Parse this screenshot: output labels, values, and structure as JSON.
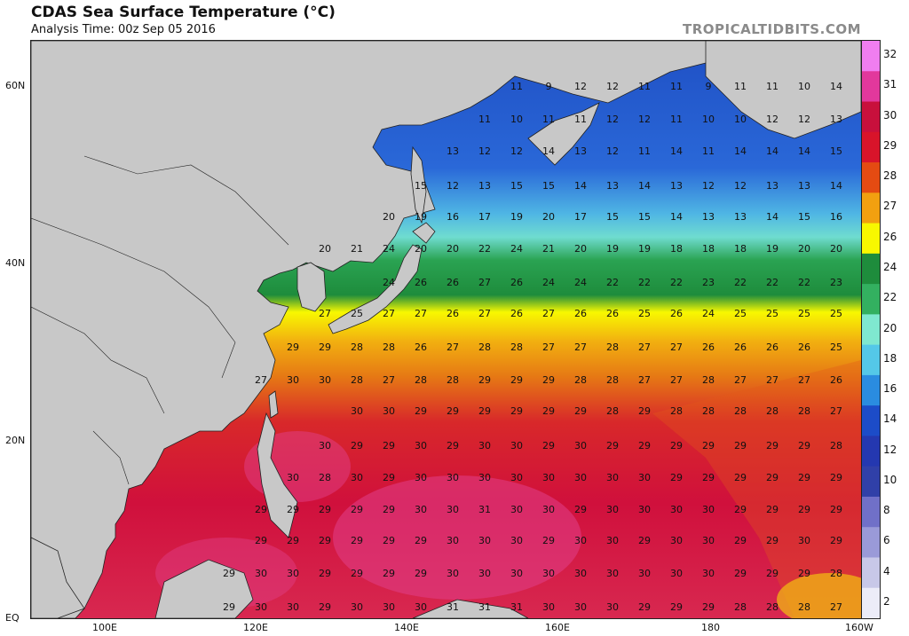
{
  "title": "CDAS Sea Surface Temperature (°C)",
  "subtitle": "Analysis Time: 00z Sep 05 2016",
  "brand": "TROPICALTIDBITS.COM",
  "lat_labels": [
    "60N",
    "40N",
    "20N",
    "EQ"
  ],
  "lon_labels": [
    "100E",
    "120E",
    "140E",
    "160E",
    "180",
    "160W"
  ],
  "colorbar": {
    "labels": [
      "32",
      "31",
      "30",
      "29",
      "28",
      "27",
      "26",
      "24",
      "22",
      "20",
      "18",
      "16",
      "14",
      "12",
      "10",
      "8",
      "6",
      "4",
      "2"
    ],
    "colors": [
      "#f07ef0",
      "#e2389c",
      "#c8103c",
      "#d8142a",
      "#e44b12",
      "#f2a010",
      "#f8f800",
      "#1e8c3c",
      "#33b060",
      "#7fe8d0",
      "#54c8e8",
      "#2a8ce0",
      "#1c4cc8",
      "#2438b0",
      "#3040a8",
      "#7070c8",
      "#9a9ad8",
      "#c8c8e8",
      "#ececf8"
    ]
  },
  "grid_values": [
    {
      "row": "60N",
      "vals": [
        "11",
        "9",
        "12",
        "12",
        "11",
        "11",
        "9",
        "11",
        "11",
        "10",
        "14"
      ]
    },
    {
      "row": "55N",
      "vals": [
        "11",
        "10",
        "11",
        "11",
        "12",
        "12",
        "11",
        "10",
        "10",
        "12",
        "12",
        "13"
      ]
    },
    {
      "row": "50N",
      "vals": [
        "13",
        "12",
        "12",
        "14",
        "13",
        "12",
        "11",
        "14",
        "11",
        "14",
        "14",
        "14",
        "15"
      ]
    },
    {
      "row": "45N",
      "vals": [
        "15",
        "12",
        "13",
        "15",
        "15",
        "14",
        "13",
        "14",
        "13",
        "12",
        "12",
        "13",
        "13",
        "14"
      ]
    },
    {
      "row": "43N",
      "vals": [
        "20",
        "19",
        "16",
        "17",
        "19",
        "20",
        "17",
        "15",
        "15",
        "14",
        "13",
        "13",
        "14",
        "15",
        "16"
      ]
    },
    {
      "row": "40N",
      "vals": [
        "20",
        "21",
        "24",
        "20",
        "20",
        "22",
        "24",
        "21",
        "20",
        "19",
        "19",
        "18",
        "18",
        "18",
        "19",
        "20",
        "20"
      ]
    },
    {
      "row": "37N",
      "vals": [
        "24",
        "26",
        "26",
        "27",
        "26",
        "24",
        "24",
        "22",
        "22",
        "22",
        "23",
        "22",
        "22",
        "22",
        "23"
      ]
    },
    {
      "row": "34N",
      "vals": [
        "27",
        "25",
        "27",
        "27",
        "26",
        "27",
        "26",
        "27",
        "26",
        "26",
        "25",
        "26",
        "24",
        "25",
        "25",
        "25",
        "25"
      ]
    },
    {
      "row": "30N",
      "vals": [
        "29",
        "29",
        "28",
        "28",
        "26",
        "27",
        "28",
        "28",
        "27",
        "27",
        "28",
        "27",
        "27",
        "26",
        "26",
        "26",
        "26",
        "25"
      ]
    },
    {
      "row": "26N",
      "vals": [
        "27",
        "30",
        "30",
        "28",
        "27",
        "28",
        "28",
        "29",
        "29",
        "29",
        "28",
        "28",
        "27",
        "27",
        "28",
        "27",
        "27",
        "27",
        "26"
      ]
    },
    {
      "row": "22N",
      "vals": [
        "30",
        "30",
        "29",
        "29",
        "29",
        "29",
        "29",
        "29",
        "28",
        "29",
        "28",
        "28",
        "28",
        "28",
        "28",
        "27"
      ]
    },
    {
      "row": "18N",
      "vals": [
        "30",
        "29",
        "29",
        "30",
        "29",
        "30",
        "30",
        "29",
        "30",
        "29",
        "29",
        "29",
        "29",
        "29",
        "29",
        "29",
        "28"
      ]
    },
    {
      "row": "14N",
      "vals": [
        "30",
        "28",
        "30",
        "29",
        "30",
        "30",
        "30",
        "30",
        "30",
        "30",
        "30",
        "30",
        "29",
        "29",
        "29",
        "29",
        "29",
        "29"
      ]
    },
    {
      "row": "10N",
      "vals": [
        "29",
        "29",
        "29",
        "29",
        "29",
        "30",
        "30",
        "31",
        "30",
        "30",
        "29",
        "30",
        "30",
        "30",
        "30",
        "29",
        "29",
        "29",
        "29"
      ]
    },
    {
      "row": "6N",
      "vals": [
        "29",
        "29",
        "29",
        "29",
        "29",
        "29",
        "30",
        "30",
        "30",
        "29",
        "30",
        "30",
        "29",
        "30",
        "30",
        "29",
        "29",
        "30",
        "29"
      ]
    },
    {
      "row": "2N",
      "vals": [
        "29",
        "30",
        "30",
        "29",
        "29",
        "29",
        "29",
        "30",
        "30",
        "30",
        "30",
        "30",
        "30",
        "30",
        "30",
        "30",
        "29",
        "29",
        "29",
        "28"
      ]
    },
    {
      "row": "0",
      "vals": [
        "29",
        "30",
        "30",
        "29",
        "30",
        "30",
        "30",
        "31",
        "31",
        "31",
        "30",
        "30",
        "30",
        "29",
        "29",
        "29",
        "28",
        "28",
        "28",
        "27"
      ]
    }
  ]
}
